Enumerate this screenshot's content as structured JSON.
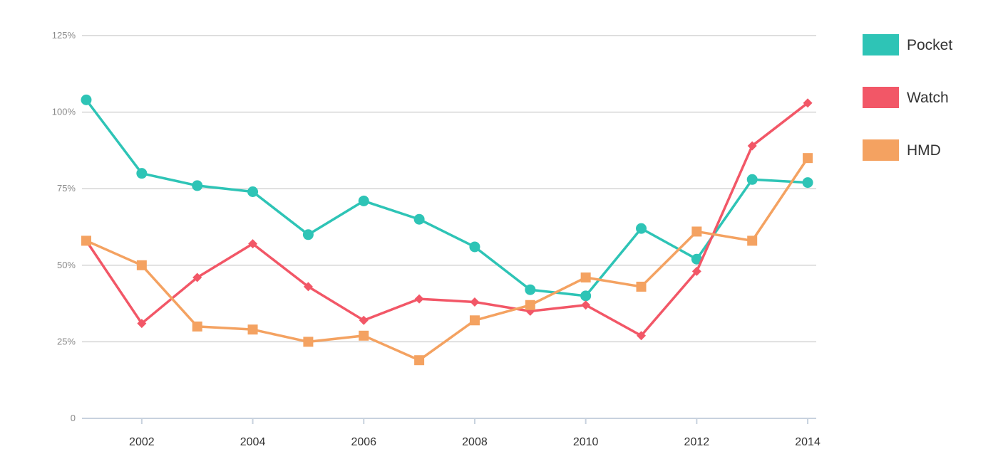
{
  "chart_data": {
    "type": "line",
    "x": [
      2001,
      2002,
      2003,
      2004,
      2005,
      2006,
      2007,
      2008,
      2009,
      2010,
      2011,
      2012,
      2013,
      2014
    ],
    "x_tick_labels": [
      "2002",
      "2004",
      "2006",
      "2008",
      "2010",
      "2012",
      "2014"
    ],
    "y_ticks": [
      0,
      25,
      50,
      75,
      100,
      125
    ],
    "y_tick_labels": [
      "0",
      "25%",
      "50%",
      "75%",
      "100%",
      "125%"
    ],
    "ylim": [
      0,
      125
    ],
    "grid": true,
    "legend_position": "top-right",
    "series": [
      {
        "name": "Pocket",
        "color": "#2ec4b6",
        "marker": "circle",
        "values": [
          104,
          80,
          76,
          74,
          60,
          71,
          65,
          56,
          42,
          40,
          62,
          52,
          78,
          77
        ]
      },
      {
        "name": "Watch",
        "color": "#f25767",
        "marker": "diamond",
        "values": [
          58,
          31,
          46,
          57,
          43,
          32,
          39,
          38,
          35,
          37,
          27,
          48,
          89,
          103
        ]
      },
      {
        "name": "HMD",
        "color": "#f4a261",
        "marker": "square",
        "values": [
          58,
          50,
          30,
          29,
          25,
          27,
          19,
          32,
          37,
          46,
          43,
          61,
          58,
          85
        ]
      }
    ]
  }
}
